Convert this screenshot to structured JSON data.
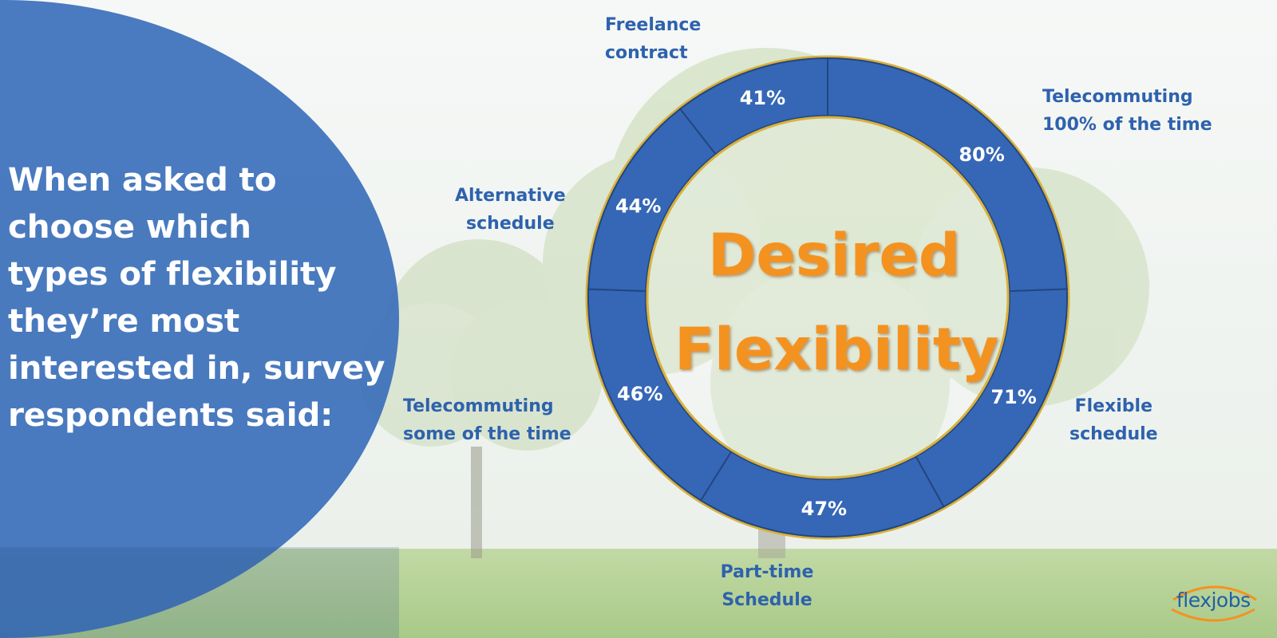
{
  "headline": {
    "lines": [
      "When asked to",
      "choose which",
      "types of flexibility",
      "they’re most",
      "interested in, survey",
      "respondents said:"
    ]
  },
  "center_title": [
    "Desired",
    "Flexibility"
  ],
  "logo": {
    "text": "flexjobs"
  },
  "colors": {
    "panel": "#3c70ba",
    "ring": "#3567b6",
    "ring_border": "#d9b13c",
    "label_text": "#2e62ad",
    "title": "#f49220",
    "value_text": "#ffffff"
  },
  "chart_data": {
    "type": "donut",
    "title": "",
    "center_label": "Desired Flexibility",
    "categories": [
      {
        "label_lines": [
          "Telecommuting",
          "100% of the time"
        ],
        "value_text": "80%"
      },
      {
        "label_lines": [
          "Flexible",
          "schedule"
        ],
        "value_text": "71%"
      },
      {
        "label_lines": [
          "Part-time",
          "Schedule"
        ],
        "value_text": "47%"
      },
      {
        "label_lines": [
          "Telecommuting",
          "some of the time"
        ],
        "value_text": "46%"
      },
      {
        "label_lines": [
          "Alternative",
          "schedule"
        ],
        "value_text": "44%"
      },
      {
        "label_lines": [
          "Freelance",
          "contract"
        ],
        "value_text": "41%"
      }
    ],
    "values": [
      80,
      71,
      47,
      46,
      44,
      41
    ],
    "units": "%"
  }
}
